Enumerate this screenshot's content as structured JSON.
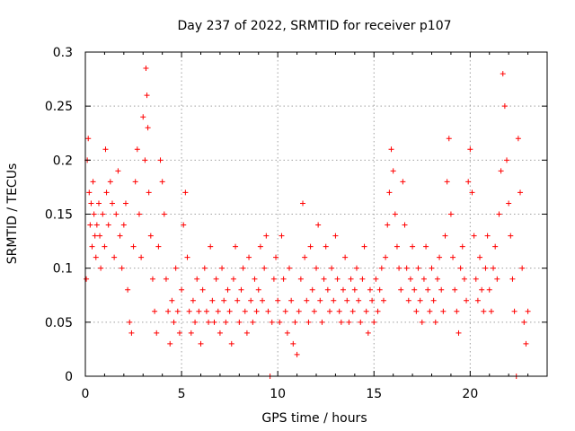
{
  "chart_data": {
    "type": "scatter",
    "title": "Day 237 of 2022, SRMTID for receiver p107",
    "xlabel": "GPS time / hours",
    "ylabel": "SRMTID / TECUs",
    "xlim": [
      0,
      24
    ],
    "ylim": [
      0,
      0.3
    ],
    "xticks": [
      0,
      5,
      10,
      15,
      20
    ],
    "xtick_labels": [
      "0",
      "5",
      "10",
      "15",
      "20"
    ],
    "yticks": [
      0,
      0.05,
      0.1,
      0.15,
      0.2,
      0.25,
      0.3
    ],
    "ytick_labels": [
      "0",
      "0.05",
      "0.1",
      "0.15",
      "0.2",
      "0.25",
      "0.3"
    ],
    "grid": true,
    "marker": "+",
    "color": "#ff0000",
    "series": [
      {
        "name": "SRMTID",
        "points": [
          [
            0.05,
            0.09
          ],
          [
            0.1,
            0.2
          ],
          [
            0.15,
            0.22
          ],
          [
            0.2,
            0.17
          ],
          [
            0.25,
            0.14
          ],
          [
            0.3,
            0.16
          ],
          [
            0.35,
            0.12
          ],
          [
            0.4,
            0.18
          ],
          [
            0.45,
            0.15
          ],
          [
            0.5,
            0.13
          ],
          [
            0.55,
            0.11
          ],
          [
            0.6,
            0.14
          ],
          [
            0.7,
            0.16
          ],
          [
            0.75,
            0.13
          ],
          [
            0.8,
            0.1
          ],
          [
            0.9,
            0.15
          ],
          [
            1.0,
            0.12
          ],
          [
            1.05,
            0.21
          ],
          [
            1.1,
            0.17
          ],
          [
            1.2,
            0.14
          ],
          [
            1.3,
            0.18
          ],
          [
            1.4,
            0.16
          ],
          [
            1.5,
            0.11
          ],
          [
            1.6,
            0.15
          ],
          [
            1.7,
            0.19
          ],
          [
            1.8,
            0.13
          ],
          [
            1.9,
            0.1
          ],
          [
            2.0,
            0.14
          ],
          [
            2.1,
            0.16
          ],
          [
            2.2,
            0.08
          ],
          [
            2.3,
            0.05
          ],
          [
            2.4,
            0.04
          ],
          [
            2.5,
            0.12
          ],
          [
            2.6,
            0.18
          ],
          [
            2.7,
            0.21
          ],
          [
            2.8,
            0.15
          ],
          [
            2.9,
            0.11
          ],
          [
            3.0,
            0.24
          ],
          [
            3.1,
            0.2
          ],
          [
            3.15,
            0.285
          ],
          [
            3.2,
            0.26
          ],
          [
            3.25,
            0.23
          ],
          [
            3.3,
            0.17
          ],
          [
            3.4,
            0.13
          ],
          [
            3.5,
            0.09
          ],
          [
            3.6,
            0.06
          ],
          [
            3.7,
            0.04
          ],
          [
            3.8,
            0.12
          ],
          [
            3.9,
            0.2
          ],
          [
            4.0,
            0.18
          ],
          [
            4.1,
            0.15
          ],
          [
            4.2,
            0.09
          ],
          [
            4.3,
            0.06
          ],
          [
            4.4,
            0.03
          ],
          [
            4.5,
            0.07
          ],
          [
            4.6,
            0.05
          ],
          [
            4.7,
            0.1
          ],
          [
            4.8,
            0.06
          ],
          [
            4.9,
            0.04
          ],
          [
            5.0,
            0.08
          ],
          [
            5.1,
            0.14
          ],
          [
            5.2,
            0.17
          ],
          [
            5.3,
            0.11
          ],
          [
            5.4,
            0.06
          ],
          [
            5.5,
            0.04
          ],
          [
            5.6,
            0.07
          ],
          [
            5.7,
            0.05
          ],
          [
            5.8,
            0.09
          ],
          [
            5.9,
            0.06
          ],
          [
            6.0,
            0.03
          ],
          [
            6.1,
            0.08
          ],
          [
            6.2,
            0.1
          ],
          [
            6.3,
            0.06
          ],
          [
            6.4,
            0.05
          ],
          [
            6.5,
            0.12
          ],
          [
            6.6,
            0.07
          ],
          [
            6.7,
            0.05
          ],
          [
            6.8,
            0.09
          ],
          [
            6.9,
            0.06
          ],
          [
            7.0,
            0.04
          ],
          [
            7.1,
            0.1
          ],
          [
            7.2,
            0.07
          ],
          [
            7.3,
            0.05
          ],
          [
            7.4,
            0.08
          ],
          [
            7.5,
            0.06
          ],
          [
            7.6,
            0.03
          ],
          [
            7.7,
            0.09
          ],
          [
            7.8,
            0.12
          ],
          [
            7.9,
            0.07
          ],
          [
            8.0,
            0.05
          ],
          [
            8.1,
            0.08
          ],
          [
            8.2,
            0.1
          ],
          [
            8.3,
            0.06
          ],
          [
            8.4,
            0.04
          ],
          [
            8.5,
            0.11
          ],
          [
            8.6,
            0.07
          ],
          [
            8.7,
            0.05
          ],
          [
            8.8,
            0.09
          ],
          [
            8.9,
            0.06
          ],
          [
            9.0,
            0.08
          ],
          [
            9.1,
            0.12
          ],
          [
            9.2,
            0.07
          ],
          [
            9.3,
            0.1
          ],
          [
            9.4,
            0.13
          ],
          [
            9.5,
            0.06
          ],
          [
            9.6,
            0.0
          ],
          [
            9.7,
            0.05
          ],
          [
            9.8,
            0.09
          ],
          [
            9.9,
            0.11
          ],
          [
            10.0,
            0.07
          ],
          [
            10.1,
            0.05
          ],
          [
            10.2,
            0.13
          ],
          [
            10.3,
            0.09
          ],
          [
            10.4,
            0.06
          ],
          [
            10.5,
            0.04
          ],
          [
            10.6,
            0.1
          ],
          [
            10.7,
            0.07
          ],
          [
            10.8,
            0.03
          ],
          [
            10.9,
            0.05
          ],
          [
            11.0,
            0.02
          ],
          [
            11.1,
            0.06
          ],
          [
            11.2,
            0.09
          ],
          [
            11.3,
            0.16
          ],
          [
            11.4,
            0.11
          ],
          [
            11.5,
            0.07
          ],
          [
            11.6,
            0.05
          ],
          [
            11.7,
            0.12
          ],
          [
            11.8,
            0.08
          ],
          [
            11.9,
            0.06
          ],
          [
            12.0,
            0.1
          ],
          [
            12.1,
            0.14
          ],
          [
            12.2,
            0.07
          ],
          [
            12.3,
            0.05
          ],
          [
            12.4,
            0.09
          ],
          [
            12.5,
            0.12
          ],
          [
            12.6,
            0.08
          ],
          [
            12.7,
            0.06
          ],
          [
            12.8,
            0.1
          ],
          [
            12.9,
            0.07
          ],
          [
            13.0,
            0.13
          ],
          [
            13.1,
            0.09
          ],
          [
            13.2,
            0.06
          ],
          [
            13.3,
            0.05
          ],
          [
            13.4,
            0.08
          ],
          [
            13.5,
            0.11
          ],
          [
            13.6,
            0.07
          ],
          [
            13.7,
            0.05
          ],
          [
            13.8,
            0.09
          ],
          [
            13.9,
            0.06
          ],
          [
            14.0,
            0.08
          ],
          [
            14.1,
            0.1
          ],
          [
            14.2,
            0.07
          ],
          [
            14.3,
            0.05
          ],
          [
            14.4,
            0.09
          ],
          [
            14.5,
            0.12
          ],
          [
            14.6,
            0.06
          ],
          [
            14.7,
            0.04
          ],
          [
            14.8,
            0.08
          ],
          [
            14.9,
            0.07
          ],
          [
            15.0,
            0.05
          ],
          [
            15.1,
            0.09
          ],
          [
            15.2,
            0.06
          ],
          [
            15.3,
            0.08
          ],
          [
            15.4,
            0.1
          ],
          [
            15.5,
            0.07
          ],
          [
            15.6,
            0.11
          ],
          [
            15.7,
            0.14
          ],
          [
            15.8,
            0.17
          ],
          [
            15.9,
            0.21
          ],
          [
            16.0,
            0.19
          ],
          [
            16.1,
            0.15
          ],
          [
            16.2,
            0.12
          ],
          [
            16.3,
            0.1
          ],
          [
            16.4,
            0.08
          ],
          [
            16.5,
            0.18
          ],
          [
            16.6,
            0.14
          ],
          [
            16.7,
            0.1
          ],
          [
            16.8,
            0.07
          ],
          [
            16.9,
            0.09
          ],
          [
            17.0,
            0.12
          ],
          [
            17.1,
            0.08
          ],
          [
            17.2,
            0.06
          ],
          [
            17.3,
            0.1
          ],
          [
            17.4,
            0.07
          ],
          [
            17.5,
            0.05
          ],
          [
            17.6,
            0.09
          ],
          [
            17.7,
            0.12
          ],
          [
            17.8,
            0.08
          ],
          [
            17.9,
            0.06
          ],
          [
            18.0,
            0.1
          ],
          [
            18.1,
            0.07
          ],
          [
            18.2,
            0.05
          ],
          [
            18.3,
            0.09
          ],
          [
            18.4,
            0.11
          ],
          [
            18.5,
            0.08
          ],
          [
            18.6,
            0.06
          ],
          [
            18.7,
            0.13
          ],
          [
            18.8,
            0.18
          ],
          [
            18.9,
            0.22
          ],
          [
            19.0,
            0.15
          ],
          [
            19.1,
            0.11
          ],
          [
            19.2,
            0.08
          ],
          [
            19.3,
            0.06
          ],
          [
            19.4,
            0.04
          ],
          [
            19.5,
            0.1
          ],
          [
            19.6,
            0.12
          ],
          [
            19.7,
            0.09
          ],
          [
            19.8,
            0.07
          ],
          [
            19.9,
            0.18
          ],
          [
            20.0,
            0.21
          ],
          [
            20.1,
            0.17
          ],
          [
            20.2,
            0.13
          ],
          [
            20.3,
            0.09
          ],
          [
            20.4,
            0.07
          ],
          [
            20.5,
            0.11
          ],
          [
            20.6,
            0.08
          ],
          [
            20.7,
            0.06
          ],
          [
            20.8,
            0.1
          ],
          [
            20.9,
            0.13
          ],
          [
            21.0,
            0.08
          ],
          [
            21.1,
            0.06
          ],
          [
            21.2,
            0.1
          ],
          [
            21.3,
            0.12
          ],
          [
            21.4,
            0.09
          ],
          [
            21.5,
            0.15
          ],
          [
            21.6,
            0.19
          ],
          [
            21.7,
            0.28
          ],
          [
            21.8,
            0.25
          ],
          [
            21.9,
            0.2
          ],
          [
            22.0,
            0.16
          ],
          [
            22.1,
            0.13
          ],
          [
            22.2,
            0.09
          ],
          [
            22.3,
            0.06
          ],
          [
            22.4,
            0.0
          ],
          [
            22.5,
            0.22
          ],
          [
            22.6,
            0.17
          ],
          [
            22.7,
            0.1
          ],
          [
            22.8,
            0.05
          ],
          [
            22.9,
            0.03
          ],
          [
            23.0,
            0.06
          ]
        ]
      }
    ]
  }
}
